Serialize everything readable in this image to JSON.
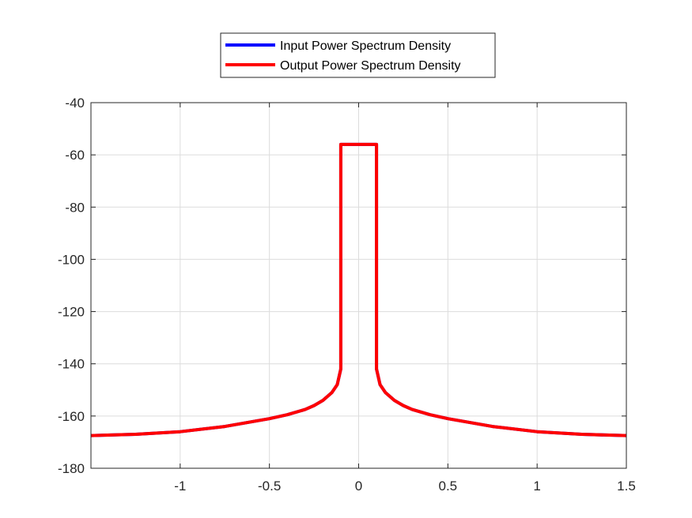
{
  "chart_data": {
    "type": "line",
    "title": "",
    "xlabel": "",
    "ylabel": "",
    "xlim": [
      -1.5,
      1.5
    ],
    "ylim": [
      -180,
      -40
    ],
    "x_ticks": [
      -1,
      -0.5,
      0,
      0.5,
      1,
      1.5
    ],
    "x_tick_labels": [
      "-1",
      "-0.5",
      "0",
      "0.5",
      "1",
      "1.5"
    ],
    "y_ticks": [
      -40,
      -60,
      -80,
      -100,
      -120,
      -140,
      -160,
      -180
    ],
    "y_tick_labels": [
      "-40",
      "-60",
      "-80",
      "-100",
      "-120",
      "-140",
      "-160",
      "-180"
    ],
    "grid": true,
    "legend_position": "top-center, outside axes",
    "series": [
      {
        "name": "Input Power Spectrum Density",
        "color": "#0000ff",
        "x": [
          -1.5,
          -1.25,
          -1.0,
          -0.75,
          -0.5,
          -0.4,
          -0.3,
          -0.25,
          -0.2,
          -0.15,
          -0.12,
          -0.1,
          -0.1,
          -0.1,
          -0.1,
          0.0,
          0.1,
          0.1,
          0.1,
          0.1,
          0.12,
          0.15,
          0.2,
          0.25,
          0.3,
          0.4,
          0.5,
          0.75,
          1.0,
          1.25,
          1.5
        ],
        "y": [
          -167.5,
          -167.0,
          -166.0,
          -164.0,
          -161.0,
          -159.5,
          -157.5,
          -156.0,
          -154.0,
          -151.0,
          -148.0,
          -142.0,
          -85.0,
          -75.0,
          -56.0,
          -56.0,
          -56.0,
          -75.0,
          -85.0,
          -142.0,
          -148.0,
          -151.0,
          -154.0,
          -156.0,
          -157.5,
          -159.5,
          -161.0,
          -164.0,
          -166.0,
          -167.0,
          -167.5
        ]
      },
      {
        "name": "Output Power Spectrum Density",
        "color": "#ff0000",
        "x": [
          -1.5,
          -1.25,
          -1.0,
          -0.75,
          -0.5,
          -0.4,
          -0.3,
          -0.25,
          -0.2,
          -0.15,
          -0.12,
          -0.1,
          -0.1,
          -0.1,
          -0.1,
          0.0,
          0.1,
          0.1,
          0.1,
          0.1,
          0.12,
          0.15,
          0.2,
          0.25,
          0.3,
          0.4,
          0.5,
          0.75,
          1.0,
          1.25,
          1.5
        ],
        "y": [
          -167.5,
          -167.0,
          -166.0,
          -164.0,
          -161.0,
          -159.5,
          -157.5,
          -156.0,
          -154.0,
          -151.0,
          -148.0,
          -142.0,
          -85.0,
          -75.0,
          -56.0,
          -56.0,
          -56.0,
          -75.0,
          -85.0,
          -142.0,
          -148.0,
          -151.0,
          -154.0,
          -156.0,
          -157.5,
          -159.5,
          -161.0,
          -164.0,
          -166.0,
          -167.0,
          -167.5
        ]
      }
    ]
  }
}
